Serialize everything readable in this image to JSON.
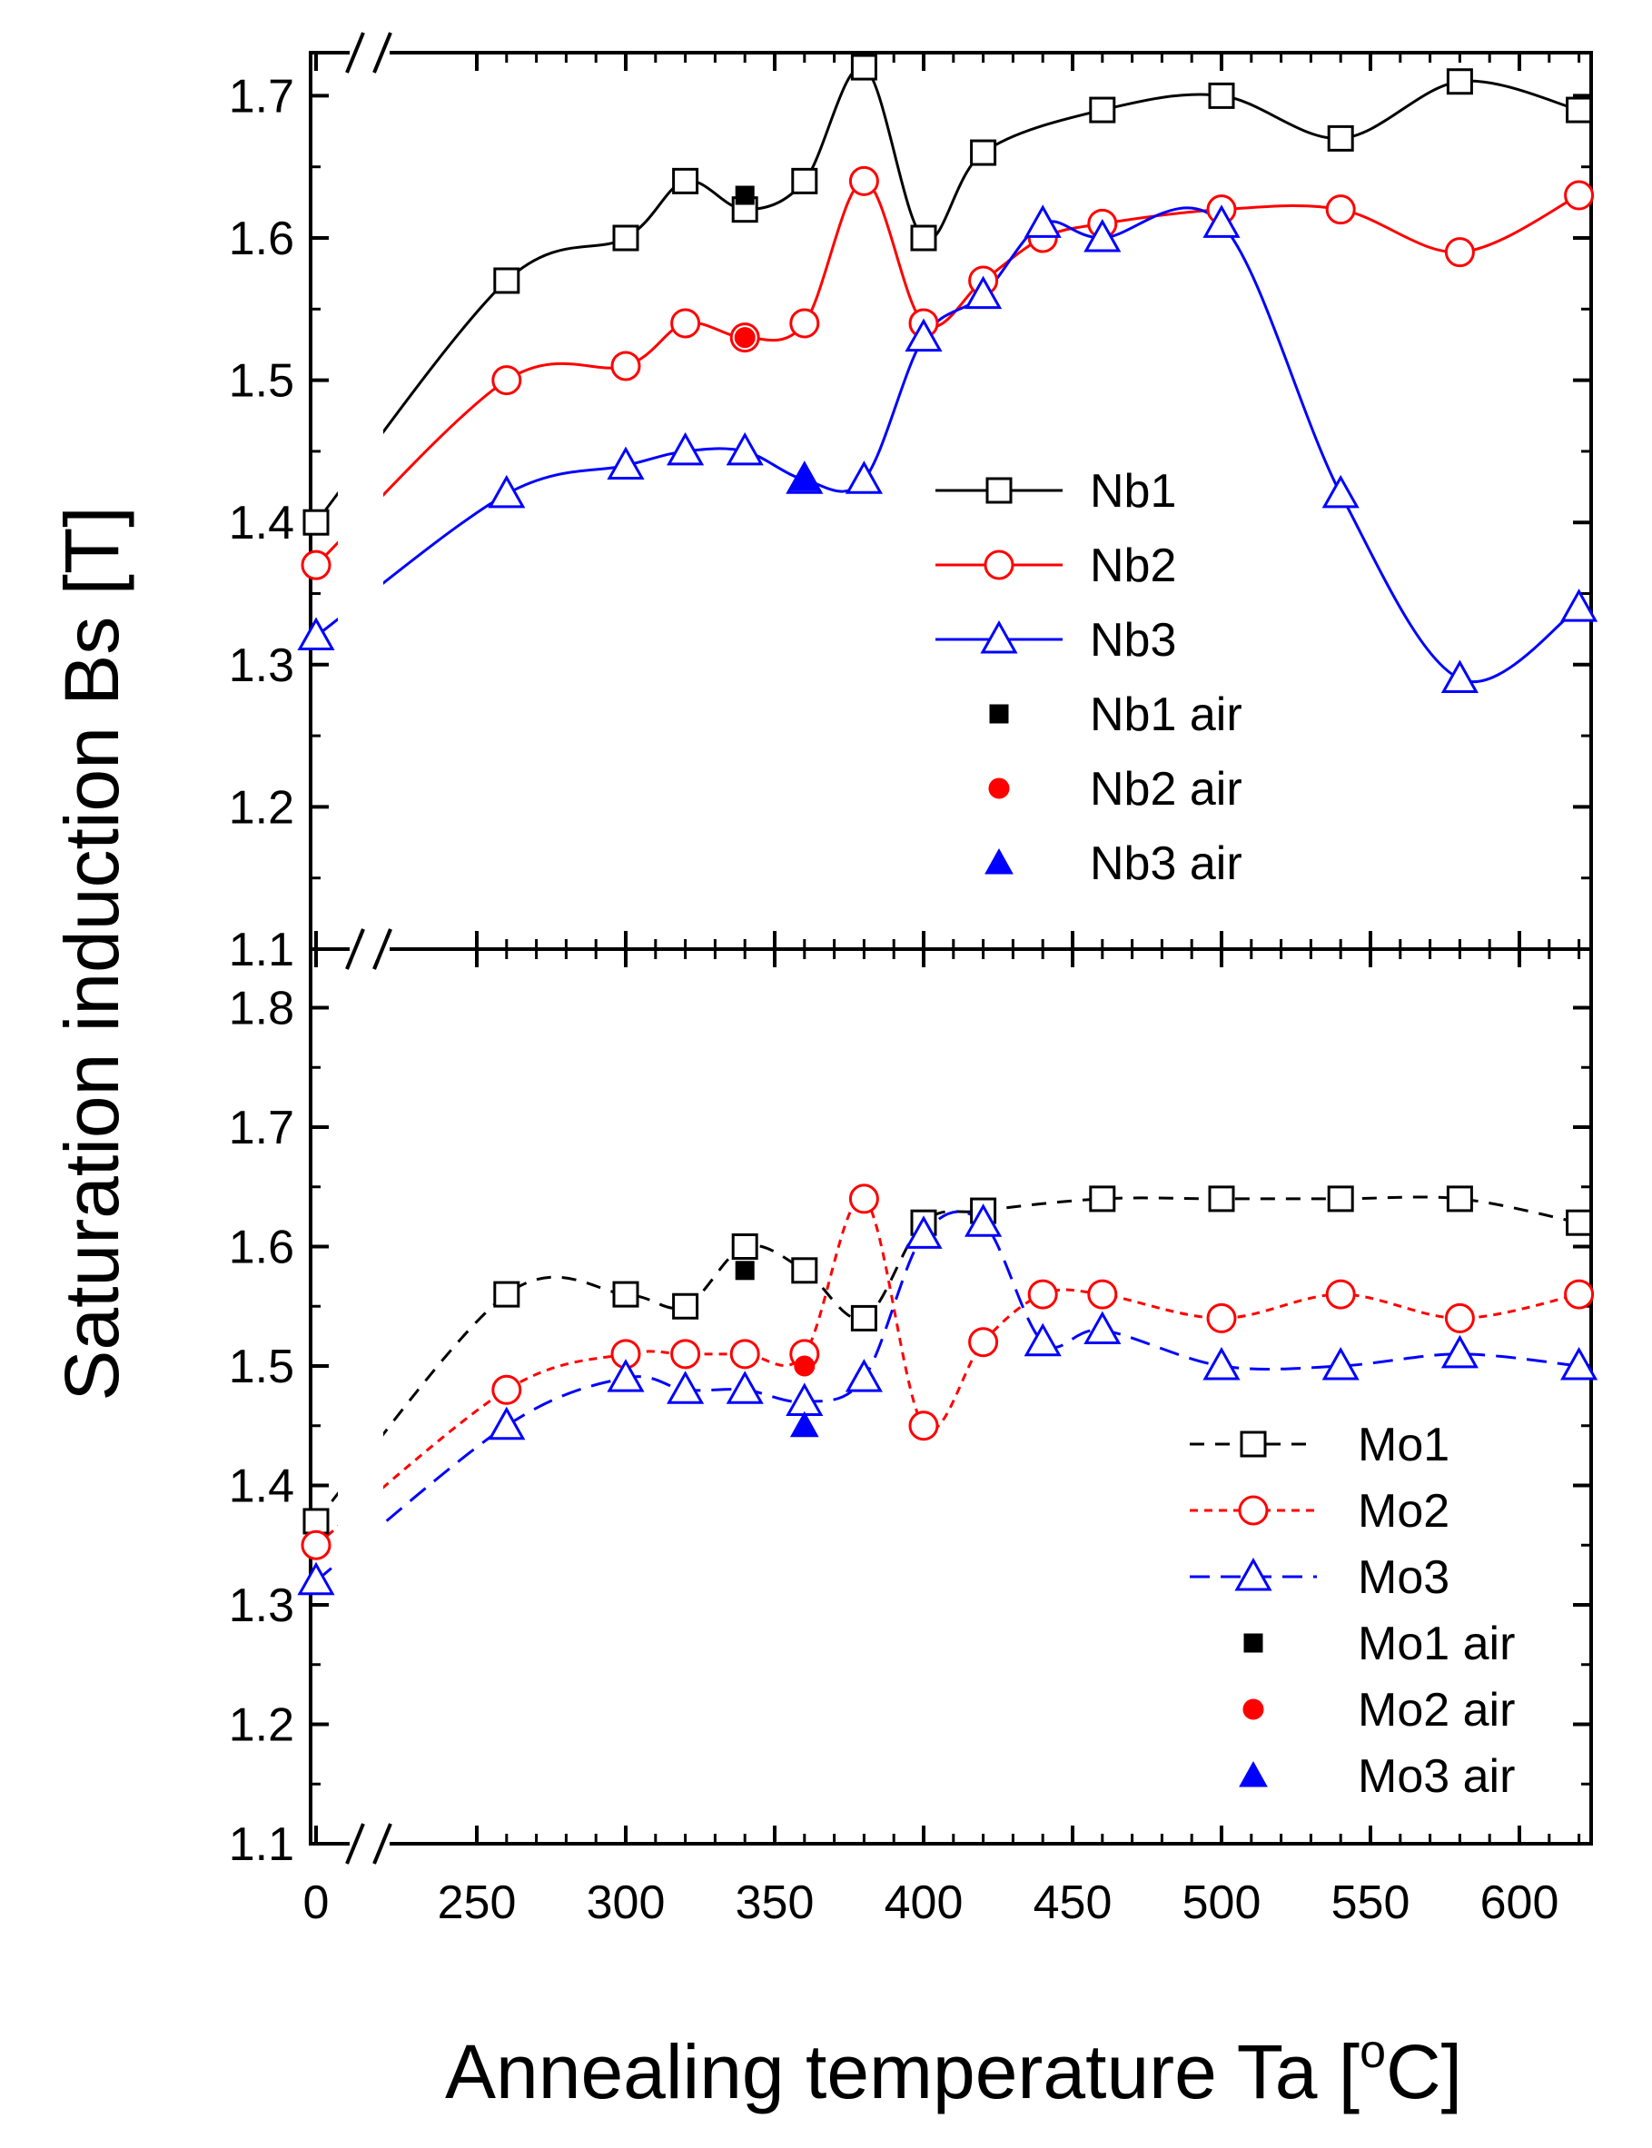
{
  "figure": {
    "ylabel": "Saturation induction Bs [T]",
    "xlabel_main": "Annealing temperature Ta [",
    "xlabel_sup": "o",
    "xlabel_end": "C]"
  },
  "colors": {
    "black": "#000000",
    "red": "#ff0000",
    "blue": "#0000ff"
  },
  "chart_data": [
    {
      "type": "line",
      "panel": "top",
      "x_ticks": [
        0,
        250,
        300,
        350,
        400,
        450,
        500,
        550,
        600
      ],
      "x_axis_break": "0 to 250",
      "ylim": [
        1.1,
        1.75
      ],
      "y_ticks": [
        1.1,
        1.2,
        1.3,
        1.4,
        1.5,
        1.6,
        1.7
      ],
      "y_tick_labels": [
        "1.1",
        "1.2",
        "1.3",
        "1.4",
        "1.5",
        "1.6",
        "1.7"
      ],
      "legend_position": "center-right",
      "line_style": "solid",
      "series": [
        {
          "name": "Nb1",
          "color": "#000000",
          "marker": "square-open",
          "x": [
            0,
            260,
            300,
            320,
            340,
            360,
            380,
            400,
            420,
            460,
            500,
            540,
            580,
            620
          ],
          "y": [
            1.4,
            1.57,
            1.6,
            1.64,
            1.62,
            1.64,
            1.72,
            1.6,
            1.66,
            1.69,
            1.7,
            1.67,
            1.71,
            1.69
          ]
        },
        {
          "name": "Nb2",
          "color": "#ff0000",
          "marker": "circle-open",
          "x": [
            0,
            260,
            300,
            320,
            340,
            360,
            380,
            400,
            420,
            440,
            460,
            500,
            540,
            580,
            620
          ],
          "y": [
            1.37,
            1.5,
            1.51,
            1.54,
            1.53,
            1.54,
            1.64,
            1.54,
            1.57,
            1.6,
            1.61,
            1.62,
            1.62,
            1.59,
            1.63
          ]
        },
        {
          "name": "Nb3",
          "color": "#0000ff",
          "marker": "triangle-open",
          "x": [
            0,
            260,
            300,
            320,
            340,
            360,
            380,
            400,
            420,
            440,
            460,
            500,
            540,
            580,
            620
          ],
          "y": [
            1.32,
            1.42,
            1.44,
            1.45,
            1.45,
            1.43,
            1.43,
            1.53,
            1.56,
            1.61,
            1.6,
            1.61,
            1.42,
            1.29,
            1.34
          ]
        },
        {
          "name": "Nb1 air",
          "color": "#000000",
          "marker": "square-filled",
          "x": [
            340
          ],
          "y": [
            1.63
          ]
        },
        {
          "name": "Nb2 air",
          "color": "#ff0000",
          "marker": "circle-filled",
          "x": [
            340
          ],
          "y": [
            1.53
          ]
        },
        {
          "name": "Nb3 air",
          "color": "#0000ff",
          "marker": "triangle-filled",
          "x": [
            360
          ],
          "y": [
            1.43
          ]
        }
      ]
    },
    {
      "type": "line",
      "panel": "bottom",
      "x_ticks": [
        0,
        250,
        300,
        350,
        400,
        450,
        500,
        550,
        600
      ],
      "x_tick_labels": [
        "0",
        "250",
        "300",
        "350",
        "400",
        "450",
        "500",
        "550",
        "600"
      ],
      "x_axis_break": "0 to 250",
      "ylim": [
        1.1,
        1.85
      ],
      "y_ticks": [
        1.1,
        1.2,
        1.3,
        1.4,
        1.5,
        1.6,
        1.7,
        1.8
      ],
      "y_tick_labels": [
        "1.1",
        "1.2",
        "1.3",
        "1.4",
        "1.5",
        "1.6",
        "1.7",
        "1.8"
      ],
      "legend_position": "bottom-right",
      "line_style": "dashed",
      "series": [
        {
          "name": "Mo1",
          "color": "#000000",
          "marker": "square-open",
          "x": [
            0,
            260,
            300,
            320,
            340,
            360,
            380,
            400,
            420,
            460,
            500,
            540,
            580,
            620
          ],
          "y": [
            1.37,
            1.56,
            1.56,
            1.55,
            1.6,
            1.58,
            1.54,
            1.62,
            1.63,
            1.64,
            1.64,
            1.64,
            1.64,
            1.62
          ]
        },
        {
          "name": "Mo2",
          "color": "#ff0000",
          "marker": "circle-open",
          "x": [
            0,
            260,
            300,
            320,
            340,
            360,
            380,
            400,
            420,
            440,
            460,
            500,
            540,
            580,
            620
          ],
          "y": [
            1.35,
            1.48,
            1.51,
            1.51,
            1.51,
            1.51,
            1.64,
            1.45,
            1.52,
            1.56,
            1.56,
            1.54,
            1.56,
            1.54,
            1.56
          ]
        },
        {
          "name": "Mo3",
          "color": "#0000ff",
          "marker": "triangle-open",
          "x": [
            0,
            260,
            300,
            320,
            340,
            360,
            380,
            400,
            420,
            440,
            460,
            500,
            540,
            580,
            620
          ],
          "y": [
            1.32,
            1.45,
            1.49,
            1.48,
            1.48,
            1.47,
            1.49,
            1.61,
            1.62,
            1.52,
            1.53,
            1.5,
            1.5,
            1.51,
            1.5
          ]
        },
        {
          "name": "Mo1 air",
          "color": "#000000",
          "marker": "square-filled",
          "x": [
            340
          ],
          "y": [
            1.58
          ]
        },
        {
          "name": "Mo2 air",
          "color": "#ff0000",
          "marker": "circle-filled",
          "x": [
            360
          ],
          "y": [
            1.5
          ]
        },
        {
          "name": "Mo3 air",
          "color": "#0000ff",
          "marker": "triangle-filled",
          "x": [
            360
          ],
          "y": [
            1.45
          ]
        }
      ]
    }
  ]
}
